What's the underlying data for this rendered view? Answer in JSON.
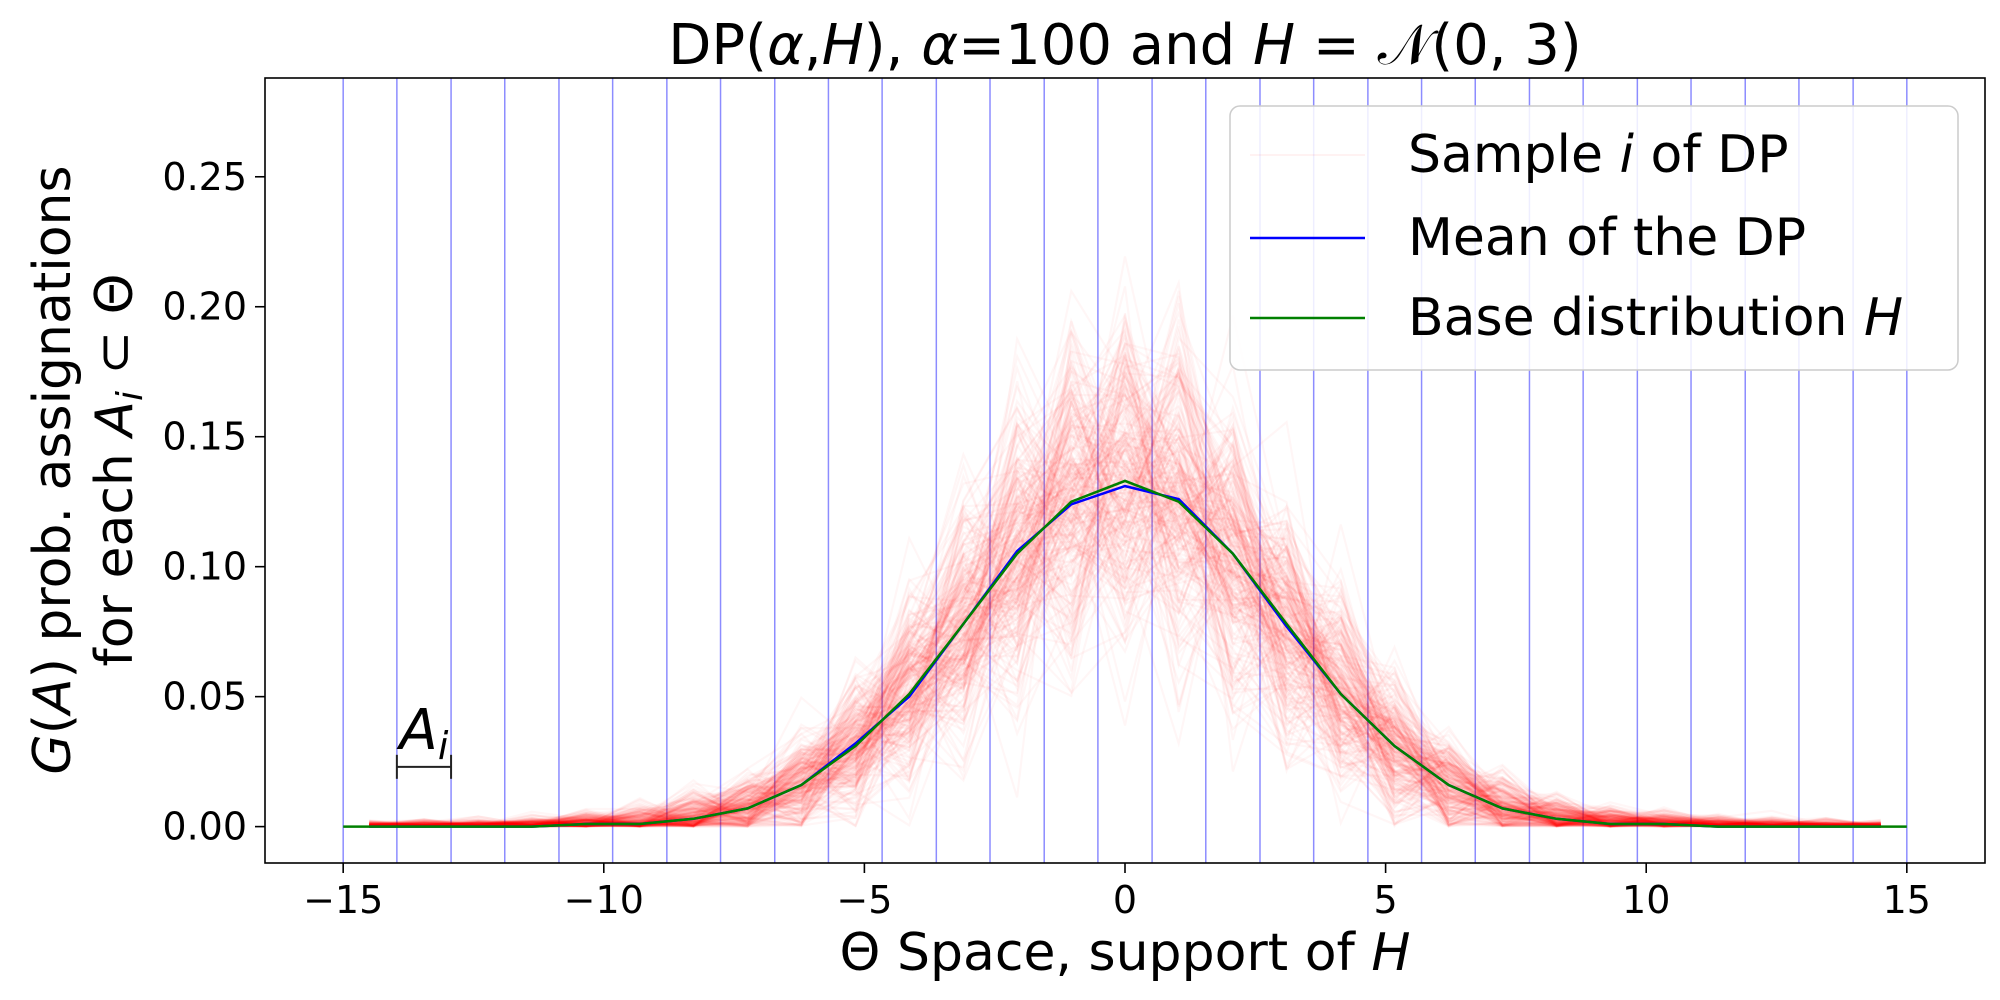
{
  "chart_data": {
    "type": "line",
    "title": "DP(α,H), α=100 and H = 𝒩(0, 3)",
    "xlabel": "Θ Space, support of H",
    "ylabel": [
      "G(A) prob. assignations",
      "for each Aᵢ ⊂ Θ"
    ],
    "xlim": [
      -16.5,
      16.5
    ],
    "ylim": [
      -0.014,
      0.288
    ],
    "xticks": [
      -15,
      -10,
      -5,
      0,
      5,
      10,
      15
    ],
    "xtick_labels": [
      "−15",
      "−10",
      "−5",
      "0",
      "5",
      "10",
      "15"
    ],
    "yticks": [
      0.0,
      0.05,
      0.1,
      0.15,
      0.2,
      0.25
    ],
    "ytick_labels": [
      "0.00",
      "0.05",
      "0.10",
      "0.15",
      "0.20",
      "0.25"
    ],
    "grid": false,
    "legend_position": "top-right",
    "partition_lines": [
      -15,
      -13.97,
      -12.93,
      -11.9,
      -10.86,
      -9.83,
      -8.79,
      -7.76,
      -6.72,
      -5.69,
      -4.66,
      -3.62,
      -2.59,
      -1.55,
      -0.52,
      0.52,
      1.55,
      2.59,
      3.62,
      4.66,
      5.69,
      6.72,
      7.76,
      8.79,
      9.83,
      10.86,
      11.9,
      12.93,
      13.97,
      15
    ],
    "interval_annotation": {
      "label": "Aᵢ",
      "x_start": -13.97,
      "x_end": -12.93,
      "y": 0.023
    },
    "series": [
      {
        "name": "Sample i of DP",
        "color": "#ff0000",
        "kind": "many-samples",
        "spread_profile": [
          [
            -14.5,
            0.002
          ],
          [
            -12,
            0.003
          ],
          [
            -10,
            0.005
          ],
          [
            -8,
            0.01
          ],
          [
            -7,
            0.014
          ],
          [
            -6,
            0.02
          ],
          [
            -5,
            0.028
          ],
          [
            -4,
            0.038
          ],
          [
            -3,
            0.048
          ],
          [
            -2,
            0.056
          ],
          [
            -1,
            0.062
          ],
          [
            0,
            0.066
          ],
          [
            1,
            0.062
          ],
          [
            2,
            0.056
          ],
          [
            3,
            0.048
          ],
          [
            4,
            0.038
          ],
          [
            5,
            0.028
          ],
          [
            6,
            0.02
          ],
          [
            7,
            0.014
          ],
          [
            8,
            0.01
          ],
          [
            10,
            0.005
          ],
          [
            12,
            0.003
          ],
          [
            14.5,
            0.002
          ]
        ]
      },
      {
        "name": "Mean of the DP",
        "color": "#0000ff",
        "x": [
          -14.5,
          -13.45,
          -12.41,
          -11.38,
          -10.34,
          -9.31,
          -8.28,
          -7.24,
          -6.21,
          -5.17,
          -4.14,
          -3.1,
          -2.07,
          -1.03,
          0,
          1.03,
          2.07,
          3.1,
          4.14,
          5.17,
          6.21,
          7.24,
          8.28,
          9.31,
          10.34,
          11.38,
          12.41,
          13.45,
          14.5
        ],
        "y": [
          0.0,
          0.0,
          0.0,
          0.0,
          0.001,
          0.001,
          0.003,
          0.007,
          0.016,
          0.032,
          0.05,
          0.078,
          0.106,
          0.124,
          0.131,
          0.126,
          0.105,
          0.077,
          0.051,
          0.031,
          0.016,
          0.007,
          0.003,
          0.001,
          0.001,
          0.0,
          0.0,
          0.0,
          0.0
        ]
      },
      {
        "name": "Base distribution H",
        "color": "#008000",
        "x": [
          -15,
          -14.5,
          -13.45,
          -12.41,
          -11.38,
          -10.34,
          -9.31,
          -8.28,
          -7.24,
          -6.21,
          -5.17,
          -4.14,
          -3.1,
          -2.07,
          -1.03,
          0,
          1.03,
          2.07,
          3.1,
          4.14,
          5.17,
          6.21,
          7.24,
          8.28,
          9.31,
          10.34,
          11.38,
          12.41,
          13.45,
          14.5,
          15
        ],
        "y": [
          0.0,
          0.0,
          0.0,
          0.0,
          0.0,
          0.001,
          0.001,
          0.003,
          0.007,
          0.016,
          0.031,
          0.051,
          0.078,
          0.105,
          0.125,
          0.133,
          0.125,
          0.105,
          0.078,
          0.051,
          0.031,
          0.016,
          0.007,
          0.003,
          0.001,
          0.001,
          0.0,
          0.0,
          0.0,
          0.0,
          0.0
        ]
      }
    ],
    "legend": [
      {
        "label": "Sample i of DP",
        "color": "#ff0000",
        "style": "faint"
      },
      {
        "label": "Mean of the DP",
        "color": "#0000ff",
        "style": "line"
      },
      {
        "label": "Base distribution H",
        "color": "#008000",
        "style": "line"
      }
    ]
  }
}
